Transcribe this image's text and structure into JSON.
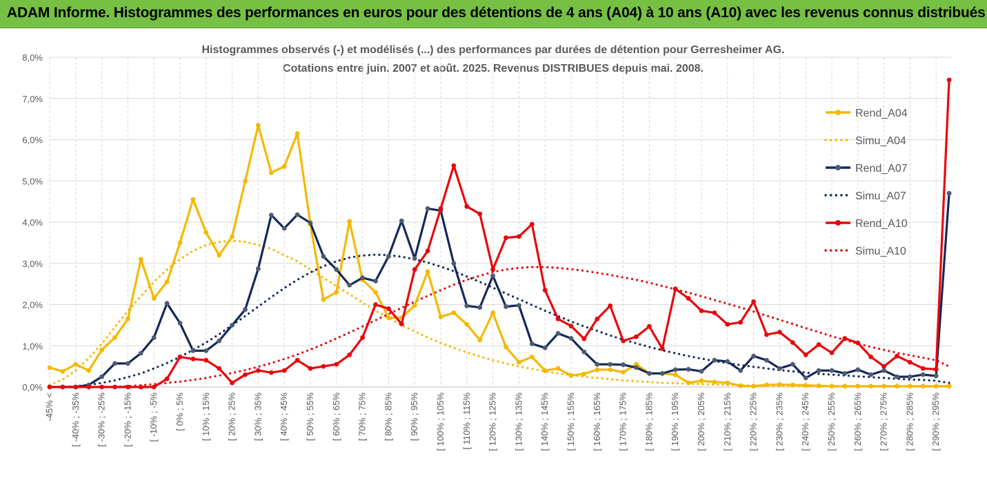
{
  "banner": {
    "title": "ADAM Informe. Histogrammes des performances en euros pour des détentions de 4 ans (A04) à 10 ans (A10) avec les revenus connus distribués"
  },
  "chart_data": {
    "type": "line",
    "title_lines": [
      "Histogrammes observés (-) et modélisés (...) des performances par durées de détention pour Gerresheimer AG.",
      "Cotations entre juin. 2007 et août. 2025. Revenus DISTRIBUES depuis mai. 2008."
    ],
    "ylim": [
      0,
      8
    ],
    "y_ticks": [
      "0,0%",
      "1,0%",
      "2,0%",
      "3,0%",
      "4,0%",
      "5,0%",
      "6,0%",
      "7,0%",
      "8,0%"
    ],
    "x_tick_labels": [
      "-45% <",
      "[ -40% ; -35%",
      "[ -30% ; -25%",
      "[ -20% ; -15%",
      "[ -10% ; -5%",
      "[ 0% ; 5%",
      "[ 10% ; 15%",
      "[ 20% ; 25%",
      "[ 30% ; 35%",
      "[ 40% ; 45%",
      "[ 50% ; 55%",
      "[ 60% ; 65%",
      "[ 70% ; 75%",
      "[ 80% ; 85%",
      "[ 90% ; 95%",
      "[ 100% ; 105%",
      "[ 110% ; 115%",
      "[ 120% ; 125%",
      "[ 130% ; 135%",
      "[ 140% ; 145%",
      "[ 150% ; 155%",
      "[ 160% ; 165%",
      "[ 170% ; 175%",
      "[ 180% ; 185%",
      "[ 190% ; 195%",
      "[ 200% ; 205%",
      "[ 210% ; 215%",
      "[ 220% ; 225%",
      "[ 230% ; 235%",
      "[ 240% ; 245%",
      "[ 250% ; 255%",
      "[ 260% ; 265%",
      "[ 270% ; 275%",
      "[ 280% ; 285%",
      "[ 290% ; 295%"
    ],
    "grid": true,
    "legend_position": "right",
    "series": [
      {
        "name": "Rend_A04",
        "style": "solid",
        "color": "#f5b800",
        "values": [
          0.47,
          0.38,
          0.55,
          0.4,
          0.9,
          1.2,
          1.65,
          3.1,
          2.15,
          2.55,
          3.5,
          4.55,
          3.75,
          3.2,
          3.65,
          5.0,
          6.35,
          5.2,
          5.35,
          6.15,
          3.95,
          2.12,
          2.3,
          4.02,
          2.6,
          2.3,
          1.68,
          1.68,
          1.98,
          2.8,
          1.7,
          1.8,
          1.52,
          1.14,
          1.8,
          0.97,
          0.6,
          0.73,
          0.4,
          0.45,
          0.28,
          0.32,
          0.42,
          0.42,
          0.36,
          0.55,
          0.33,
          0.33,
          0.3,
          0.1,
          0.15,
          0.12,
          0.1,
          0.03,
          0.02,
          0.05,
          0.06,
          0.05,
          0.04,
          0.03,
          0.02,
          0.02,
          0.02,
          0.02,
          0.02,
          0.02,
          0.02,
          0.02,
          0.02,
          0.02
        ]
      },
      {
        "name": "Simu_A04",
        "style": "dotted",
        "color": "#f5b800",
        "values": [
          0.05,
          0.18,
          0.4,
          0.7,
          1.05,
          1.45,
          1.85,
          2.2,
          2.55,
          2.85,
          3.1,
          3.3,
          3.45,
          3.52,
          3.55,
          3.52,
          3.45,
          3.35,
          3.2,
          3.05,
          2.85,
          2.65,
          2.45,
          2.25,
          2.05,
          1.85,
          1.68,
          1.5,
          1.35,
          1.2,
          1.07,
          0.95,
          0.84,
          0.74,
          0.65,
          0.57,
          0.5,
          0.44,
          0.38,
          0.33,
          0.29,
          0.25,
          0.22,
          0.19,
          0.16,
          0.14,
          0.12,
          0.1,
          0.09,
          0.08,
          0.07,
          0.06,
          0.05,
          0.04,
          0.04,
          0.03,
          0.03,
          0.02,
          0.02,
          0.02,
          0.02,
          0.02,
          0.01,
          0.01,
          0.01,
          0.01,
          0.01,
          0.01,
          0.01,
          0.01
        ]
      },
      {
        "name": "Rend_A07",
        "style": "solid",
        "color": "#13295a",
        "values": [
          0.0,
          0.0,
          0.0,
          0.05,
          0.25,
          0.57,
          0.57,
          0.82,
          1.2,
          2.03,
          1.55,
          0.88,
          0.88,
          1.12,
          1.5,
          1.88,
          2.87,
          4.17,
          3.85,
          4.18,
          3.98,
          3.17,
          2.85,
          2.47,
          2.65,
          2.57,
          3.17,
          4.03,
          3.12,
          4.33,
          4.28,
          3.0,
          1.97,
          1.93,
          2.7,
          1.95,
          1.98,
          1.05,
          0.95,
          1.3,
          1.18,
          0.85,
          0.55,
          0.55,
          0.54,
          0.47,
          0.33,
          0.33,
          0.42,
          0.43,
          0.38,
          0.65,
          0.62,
          0.4,
          0.75,
          0.65,
          0.45,
          0.55,
          0.22,
          0.4,
          0.4,
          0.33,
          0.42,
          0.3,
          0.4,
          0.25,
          0.25,
          0.3,
          0.27,
          4.7
        ]
      },
      {
        "name": "Simu_A07",
        "style": "dotted",
        "color": "#13295a",
        "values": [
          0.0,
          0.0,
          0.02,
          0.05,
          0.1,
          0.16,
          0.24,
          0.33,
          0.45,
          0.58,
          0.73,
          0.9,
          1.08,
          1.28,
          1.5,
          1.72,
          1.95,
          2.18,
          2.4,
          2.6,
          2.78,
          2.93,
          3.05,
          3.14,
          3.19,
          3.21,
          3.2,
          3.16,
          3.1,
          3.02,
          2.92,
          2.81,
          2.68,
          2.55,
          2.41,
          2.27,
          2.13,
          1.99,
          1.85,
          1.72,
          1.59,
          1.47,
          1.36,
          1.25,
          1.15,
          1.06,
          0.97,
          0.89,
          0.82,
          0.75,
          0.69,
          0.63,
          0.58,
          0.53,
          0.49,
          0.45,
          0.41,
          0.38,
          0.35,
          0.32,
          0.3,
          0.28,
          0.26,
          0.24,
          0.22,
          0.2,
          0.18,
          0.17,
          0.15,
          0.1
        ]
      },
      {
        "name": "Rend_A10",
        "style": "solid",
        "color": "#e8060c",
        "values": [
          0.0,
          0.0,
          0.0,
          0.0,
          0.0,
          0.0,
          0.0,
          0.0,
          0.0,
          0.2,
          0.73,
          0.68,
          0.65,
          0.45,
          0.1,
          0.3,
          0.4,
          0.35,
          0.4,
          0.65,
          0.45,
          0.5,
          0.55,
          0.78,
          1.2,
          2.0,
          1.9,
          1.53,
          2.85,
          3.3,
          4.33,
          5.37,
          4.38,
          4.2,
          2.85,
          3.62,
          3.65,
          3.95,
          2.35,
          1.65,
          1.48,
          1.17,
          1.65,
          1.97,
          1.12,
          1.22,
          1.47,
          0.93,
          2.38,
          2.15,
          1.85,
          1.8,
          1.52,
          1.57,
          2.07,
          1.27,
          1.33,
          1.08,
          0.78,
          1.03,
          0.83,
          1.18,
          1.07,
          0.73,
          0.5,
          0.75,
          0.6,
          0.45,
          0.43,
          7.45
        ]
      },
      {
        "name": "Simu_A10",
        "style": "dotted",
        "color": "#e8060c",
        "values": [
          0.0,
          0.0,
          0.0,
          0.0,
          0.0,
          0.0,
          0.02,
          0.04,
          0.07,
          0.1,
          0.13,
          0.17,
          0.22,
          0.28,
          0.34,
          0.41,
          0.49,
          0.58,
          0.68,
          0.79,
          0.91,
          1.04,
          1.18,
          1.32,
          1.47,
          1.62,
          1.77,
          1.92,
          2.07,
          2.21,
          2.35,
          2.48,
          2.6,
          2.7,
          2.79,
          2.85,
          2.89,
          2.91,
          2.91,
          2.89,
          2.86,
          2.82,
          2.77,
          2.72,
          2.66,
          2.6,
          2.53,
          2.45,
          2.37,
          2.29,
          2.2,
          2.11,
          2.02,
          1.93,
          1.83,
          1.73,
          1.63,
          1.53,
          1.43,
          1.33,
          1.23,
          1.14,
          1.05,
          0.97,
          0.9,
          0.83,
          0.77,
          0.71,
          0.65,
          0.5
        ]
      }
    ]
  }
}
